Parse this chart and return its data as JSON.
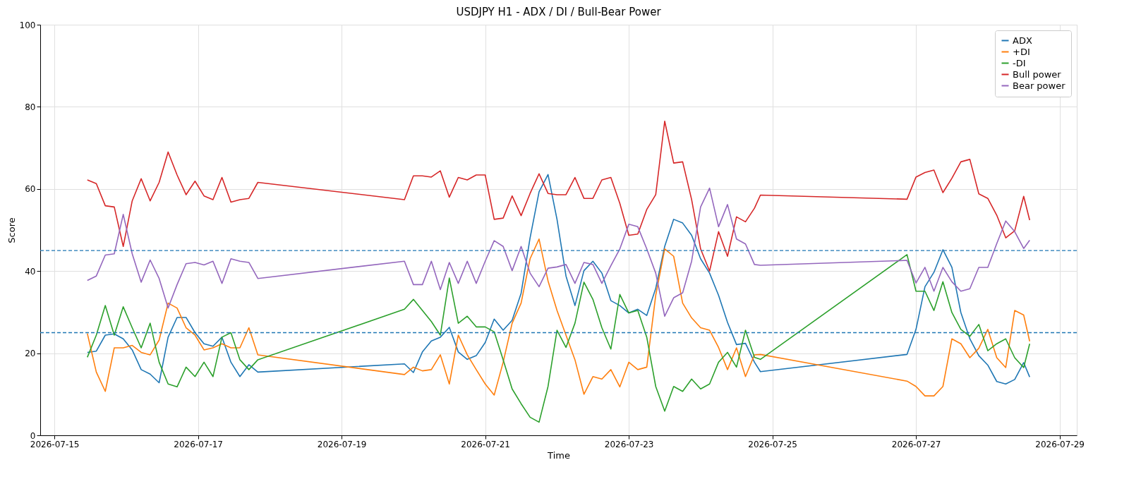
{
  "chart_data": {
    "type": "line",
    "title": "USDJPY H1 - ADX / DI / Bull-Bear Power",
    "xlabel": "Time",
    "ylabel": "Score",
    "x": [
      "2026-07-15T11:00",
      "2026-07-15T14:00",
      "2026-07-15T17:00",
      "2026-07-15T20:00",
      "2026-07-15T23:00",
      "2026-07-16T02:00",
      "2026-07-16T05:00",
      "2026-07-16T08:00",
      "2026-07-16T11:00",
      "2026-07-16T14:00",
      "2026-07-16T17:00",
      "2026-07-16T20:00",
      "2026-07-16T23:00",
      "2026-07-17T02:00",
      "2026-07-17T05:00",
      "2026-07-17T08:00",
      "2026-07-17T11:00",
      "2026-07-17T14:00",
      "2026-07-17T17:00",
      "2026-07-17T20:00",
      "2026-07-19T21:00",
      "2026-07-20T00:00",
      "2026-07-20T03:00",
      "2026-07-20T06:00",
      "2026-07-20T09:00",
      "2026-07-20T12:00",
      "2026-07-20T15:00",
      "2026-07-20T18:00",
      "2026-07-20T21:00",
      "2026-07-21T00:00",
      "2026-07-21T03:00",
      "2026-07-21T06:00",
      "2026-07-21T09:00",
      "2026-07-21T12:00",
      "2026-07-21T15:00",
      "2026-07-21T18:00",
      "2026-07-21T21:00",
      "2026-07-22T00:00",
      "2026-07-22T03:00",
      "2026-07-22T06:00",
      "2026-07-22T09:00",
      "2026-07-22T12:00",
      "2026-07-22T15:00",
      "2026-07-22T18:00",
      "2026-07-22T21:00",
      "2026-07-23T00:00",
      "2026-07-23T03:00",
      "2026-07-23T06:00",
      "2026-07-23T09:00",
      "2026-07-23T12:00",
      "2026-07-23T15:00",
      "2026-07-23T18:00",
      "2026-07-23T21:00",
      "2026-07-24T00:00",
      "2026-07-24T03:00",
      "2026-07-24T06:00",
      "2026-07-24T09:00",
      "2026-07-24T12:00",
      "2026-07-24T15:00",
      "2026-07-24T18:00",
      "2026-07-24T20:00",
      "2026-07-26T21:00",
      "2026-07-27T00:00",
      "2026-07-27T03:00",
      "2026-07-27T06:00",
      "2026-07-27T09:00",
      "2026-07-27T12:00",
      "2026-07-27T15:00",
      "2026-07-27T18:00",
      "2026-07-27T21:00",
      "2026-07-28T00:00",
      "2026-07-28T03:00",
      "2026-07-28T06:00",
      "2026-07-28T09:00",
      "2026-07-28T12:00",
      "2026-07-28T14:00"
    ],
    "series": [
      {
        "name": "ADX",
        "color": "#1f77b4",
        "values": [
          20.2,
          20.5,
          24.4,
          24.7,
          23.5,
          20.8,
          16,
          14.9,
          12.8,
          23.9,
          28.7,
          28.7,
          25,
          22.3,
          21.7,
          23.9,
          17.8,
          14.3,
          17.2,
          15.4,
          17.4,
          15.3,
          20.3,
          23,
          23.9,
          26.3,
          20.3,
          18.5,
          19.4,
          22.6,
          28.3,
          25.6,
          28,
          34.6,
          48.1,
          59.3,
          63.5,
          52.6,
          38.8,
          31.6,
          40.1,
          42.4,
          39.5,
          32.8,
          31.6,
          29.8,
          30.7,
          29.2,
          35.8,
          46,
          52.6,
          51.7,
          48.7,
          43,
          39.5,
          34.1,
          27.5,
          22.1,
          22.4,
          17.8,
          15.5,
          19.7,
          25.8,
          36.2,
          39.7,
          45.2,
          40.9,
          29.9,
          23.5,
          19.4,
          17.1,
          13.1,
          12.5,
          13.6,
          17.7,
          14.2
        ]
      },
      {
        "name": "+DI",
        "color": "#ff7f0e",
        "values": [
          24.8,
          15.4,
          10.7,
          21.3,
          21.3,
          21.9,
          20.2,
          19.6,
          23.2,
          32.2,
          31,
          26.2,
          24.4,
          20.8,
          21.3,
          22.3,
          21.3,
          21.3,
          26.2,
          19.6,
          14.8,
          16.6,
          15.7,
          16,
          19.6,
          12.5,
          24.4,
          19.6,
          16,
          12.5,
          9.8,
          17.8,
          27.3,
          32.2,
          43,
          47.8,
          37.6,
          30.4,
          24.4,
          18.4,
          10,
          14.3,
          13.7,
          16,
          11.8,
          17.8,
          16,
          16.6,
          34.1,
          45.4,
          43.6,
          32.2,
          28.6,
          26.2,
          25.6,
          21.4,
          16,
          21.3,
          14.3,
          19.6,
          19.7,
          13.2,
          11.9,
          9.6,
          9.6,
          11.9,
          23.5,
          22.3,
          18.9,
          21.2,
          25.8,
          18.9,
          16.5,
          30.4,
          29.3,
          22.9
        ]
      },
      {
        "name": "-DI",
        "color": "#2ca02c",
        "values": [
          19,
          24.4,
          31.6,
          24.4,
          31.3,
          26.2,
          21.3,
          27.3,
          17.8,
          12.5,
          11.8,
          16.6,
          14.3,
          17.8,
          14.3,
          23.9,
          25,
          18.4,
          16,
          18.4,
          30.7,
          33.1,
          30.4,
          27.7,
          24.4,
          38.3,
          27.3,
          29,
          26.4,
          26.4,
          25.2,
          18.4,
          11.3,
          7.7,
          4.4,
          3.2,
          11.9,
          25.6,
          21.4,
          27.3,
          37.3,
          33.1,
          26.2,
          21,
          34.3,
          29.8,
          30.4,
          23.9,
          11.9,
          5.9,
          11.9,
          10.7,
          13.7,
          11.3,
          12.5,
          17.8,
          20.2,
          16.6,
          25.6,
          19,
          18.5,
          44,
          35.1,
          35.1,
          30.4,
          37.4,
          29.9,
          25.8,
          24.1,
          27,
          20.6,
          22.3,
          23.5,
          18.9,
          16.5,
          22.3
        ]
      },
      {
        "name": "Bull power",
        "color": "#d62728",
        "values": [
          62.2,
          61.3,
          55.9,
          55.6,
          46,
          57.1,
          62.5,
          57.1,
          61.6,
          69,
          63.4,
          58.6,
          61.9,
          58.3,
          57.4,
          62.8,
          56.8,
          57.4,
          57.7,
          61.6,
          57.4,
          63.2,
          63.2,
          62.9,
          64.4,
          58,
          62.8,
          62.2,
          63.4,
          63.4,
          52.6,
          52.9,
          58.3,
          53.5,
          58.9,
          63.7,
          58.9,
          58.6,
          58.6,
          62.8,
          57.7,
          57.7,
          62.2,
          62.8,
          56.5,
          48.7,
          49,
          55,
          58.6,
          76.5,
          66.3,
          66.6,
          57.4,
          45.4,
          40,
          49.6,
          43.6,
          53.2,
          52,
          55.3,
          58.5,
          57.5,
          62.9,
          64,
          64.6,
          59.1,
          62.6,
          66.6,
          67.2,
          58.8,
          57.7,
          53.6,
          48.1,
          49.8,
          58.2,
          52.4
        ]
      },
      {
        "name": "Bear power",
        "color": "#9467bd",
        "values": [
          37.7,
          38.8,
          43.9,
          44.2,
          53.8,
          44.2,
          37.3,
          42.7,
          38.2,
          31,
          36.7,
          41.8,
          42.1,
          41.5,
          42.4,
          37,
          43,
          42.4,
          42.1,
          38.2,
          42.4,
          36.7,
          36.7,
          42.4,
          35.5,
          42.1,
          37,
          42.4,
          37,
          42.4,
          47.4,
          46,
          40.1,
          46,
          39.5,
          36.2,
          40.7,
          41,
          41.6,
          37,
          42.1,
          41.6,
          37,
          41.3,
          45.4,
          51.4,
          50.8,
          45.4,
          39.5,
          29,
          33.5,
          34.7,
          42.4,
          55.6,
          60.2,
          50.8,
          56.2,
          47.8,
          46.6,
          41.6,
          41.4,
          42.6,
          37.1,
          40.9,
          35.1,
          40.9,
          37.4,
          35.1,
          35.7,
          40.9,
          40.9,
          46.7,
          52.2,
          49.6,
          45.5,
          47.5
        ]
      }
    ],
    "ref_lines": [
      {
        "axis": "y",
        "value": 45,
        "color": "#1f77b4",
        "line_style": "dashed"
      },
      {
        "axis": "y",
        "value": 25,
        "color": "#1f77b4",
        "line_style": "dashed"
      }
    ],
    "xlim": [
      "2026-07-14T19:15",
      "2026-07-29T05:45"
    ],
    "xticks": [
      "2026-07-15",
      "2026-07-17",
      "2026-07-19",
      "2026-07-21",
      "2026-07-23",
      "2026-07-25",
      "2026-07-27",
      "2026-07-29"
    ],
    "ylim": [
      0,
      100
    ],
    "yticks": [
      0,
      20,
      40,
      60,
      80,
      100
    ],
    "grid": true,
    "legend": "top right"
  }
}
